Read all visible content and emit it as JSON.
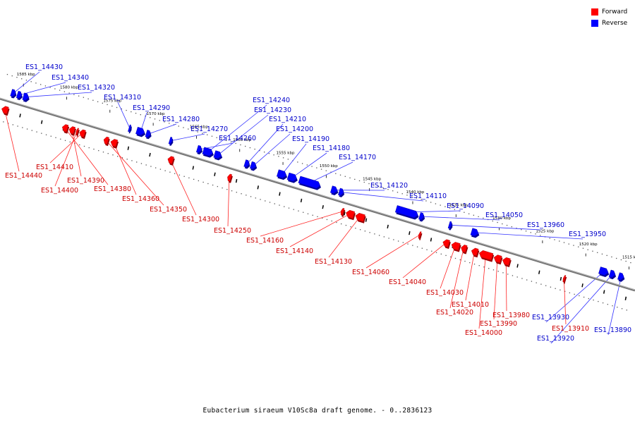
{
  "legend": {
    "forward_label": "Forward",
    "reverse_label": "Reverse",
    "forward_color": "#ff0000",
    "reverse_color": "#0000ff"
  },
  "caption": "Eubacterium siraeum V10Sc8a draft genome. - 0..2836123",
  "colors": {
    "backbone": "#777777",
    "forward_text": "#cc0000",
    "reverse_text": "#0000cc"
  },
  "scale": [
    {
      "label": "1585 kbp",
      "pos": 1585
    },
    {
      "label": "1580 kbp",
      "pos": 1580
    },
    {
      "label": "1575 kbp",
      "pos": 1575
    },
    {
      "label": "1570 kbp",
      "pos": 1570
    },
    {
      "label": "1565 kbp",
      "pos": 1565
    },
    {
      "label": "1560 kbp",
      "pos": 1560
    },
    {
      "label": "1555 kbp",
      "pos": 1555
    },
    {
      "label": "1550 kbp",
      "pos": 1550
    },
    {
      "label": "1545 kbp",
      "pos": 1545
    },
    {
      "label": "1540 kbp",
      "pos": 1540
    },
    {
      "label": "1535 kbp",
      "pos": 1535
    },
    {
      "label": "1530 kbp",
      "pos": 1530
    },
    {
      "label": "1525 kbp",
      "pos": 1525
    },
    {
      "label": "1520 kbp",
      "pos": 1520
    },
    {
      "label": "1515 kbp",
      "pos": 1515
    }
  ],
  "reverse_genes": [
    {
      "label": "ES1_14430",
      "start": 1586.0,
      "end": 1585.5
    },
    {
      "label": "ES1_14340",
      "start": 1585.3,
      "end": 1584.8
    },
    {
      "label": "ES1_14320",
      "start": 1584.6,
      "end": 1584.0
    },
    {
      "label": "ES1_14310",
      "start": 1572.4,
      "end": 1572.2
    },
    {
      "label": "ES1_14290",
      "start": 1571.5,
      "end": 1570.6
    },
    {
      "label": "ES1_14280",
      "start": 1570.4,
      "end": 1569.9
    },
    {
      "label": "ES1_14270",
      "start": 1567.7,
      "end": 1567.4
    },
    {
      "label": "ES1_14260",
      "start": 1564.5,
      "end": 1564.0
    },
    {
      "label": "ES1_14240",
      "start": 1563.8,
      "end": 1562.7
    },
    {
      "label": "ES1_14230",
      "start": 1562.5,
      "end": 1561.7
    },
    {
      "label": "ES1_14210",
      "start": 1559.0,
      "end": 1558.5
    },
    {
      "label": "ES1_14200",
      "start": 1558.3,
      "end": 1557.7
    },
    {
      "label": "ES1_14190",
      "start": 1555.2,
      "end": 1554.2
    },
    {
      "label": "ES1_14180",
      "start": 1554.0,
      "end": 1553.0
    },
    {
      "label": "ES1_14170",
      "start": 1552.7,
      "end": 1550.3
    },
    {
      "label": "ES1_14120",
      "start": 1549.0,
      "end": 1548.3
    },
    {
      "label": "ES1_14110",
      "start": 1548.1,
      "end": 1547.6
    },
    {
      "label": "ES1_14090",
      "start": 1541.5,
      "end": 1539.0
    },
    {
      "label": "ES1_14050",
      "start": 1538.8,
      "end": 1538.3
    },
    {
      "label": "ES1_13960",
      "start": 1535.4,
      "end": 1535.1
    },
    {
      "label": "ES1_13950",
      "start": 1532.8,
      "end": 1532.0
    },
    {
      "label": "ES1_13930",
      "start": 1518.0,
      "end": 1517.0
    },
    {
      "label": "ES1_13920",
      "start": 1516.8,
      "end": 1516.2
    },
    {
      "label": "ES1_13890",
      "start": 1515.8,
      "end": 1515.2
    }
  ],
  "forward_genes": [
    {
      "label": "ES1_14440",
      "start": 1585.8,
      "end": 1586.5
    },
    {
      "label": "ES1_14410",
      "start": 1576.9,
      "end": 1577.5
    },
    {
      "label": "ES1_14400",
      "start": 1577.7,
      "end": 1577.9
    },
    {
      "label": "ES1_14390",
      "start": 1578.1,
      "end": 1578.7
    },
    {
      "label": "ES1_14380",
      "start": 1578.9,
      "end": 1579.5
    },
    {
      "label": "ES1_14360",
      "start": 1573.2,
      "end": 1573.9
    },
    {
      "label": "ES1_14350",
      "start": 1574.2,
      "end": 1574.7
    },
    {
      "label": "ES1_14300",
      "start": 1566.7,
      "end": 1567.3
    },
    {
      "label": "ES1_14250",
      "start": 1560.0,
      "end": 1560.4
    },
    {
      "label": "ES1_14160",
      "start": 1547.0,
      "end": 1547.3
    },
    {
      "label": "ES1_14140",
      "start": 1545.8,
      "end": 1546.7
    },
    {
      "label": "ES1_14130",
      "start": 1544.6,
      "end": 1545.6
    },
    {
      "label": "ES1_14060",
      "start": 1538.1,
      "end": 1538.3
    },
    {
      "label": "ES1_14040",
      "start": 1534.8,
      "end": 1535.5
    },
    {
      "label": "ES1_14030",
      "start": 1533.6,
      "end": 1534.5
    },
    {
      "label": "ES1_14020",
      "start": 1532.8,
      "end": 1533.4
    },
    {
      "label": "ES1_14010",
      "start": 1531.5,
      "end": 1532.2
    },
    {
      "label": "ES1_14000",
      "start": 1529.8,
      "end": 1531.3
    },
    {
      "label": "ES1_13990",
      "start": 1528.8,
      "end": 1529.6
    },
    {
      "label": "ES1_13980",
      "start": 1527.8,
      "end": 1528.6
    },
    {
      "label": "ES1_13910",
      "start": 1521.4,
      "end": 1521.6
    }
  ]
}
